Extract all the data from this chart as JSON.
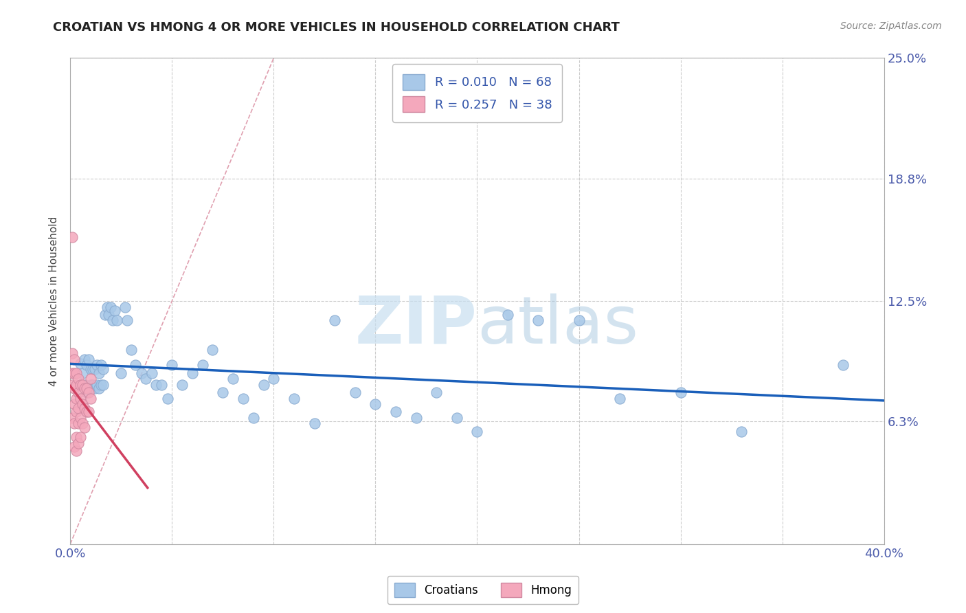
{
  "title": "CROATIAN VS HMONG 4 OR MORE VEHICLES IN HOUSEHOLD CORRELATION CHART",
  "source": "Source: ZipAtlas.com",
  "ylabel": "4 or more Vehicles in Household",
  "xlim": [
    0.0,
    0.4
  ],
  "ylim": [
    0.0,
    0.25
  ],
  "xtick_positions": [
    0.0,
    0.05,
    0.1,
    0.15,
    0.2,
    0.25,
    0.3,
    0.35,
    0.4
  ],
  "xticklabels": [
    "0.0%",
    "",
    "",
    "",
    "",
    "",
    "",
    "",
    "40.0%"
  ],
  "ytick_positions": [
    0.0,
    0.063,
    0.125,
    0.188,
    0.25
  ],
  "yticklabels_right": [
    "",
    "6.3%",
    "12.5%",
    "18.8%",
    "25.0%"
  ],
  "croatian_color": "#a8c8e8",
  "hmong_color": "#f4a8bc",
  "trend_croatian_color": "#1a5fba",
  "trend_hmong_color": "#d04060",
  "watermark_color": "#ddeef8",
  "background_color": "#ffffff",
  "croatian_x": [
    0.005,
    0.006,
    0.007,
    0.007,
    0.008,
    0.008,
    0.009,
    0.009,
    0.01,
    0.01,
    0.011,
    0.011,
    0.012,
    0.012,
    0.013,
    0.013,
    0.014,
    0.014,
    0.015,
    0.015,
    0.016,
    0.016,
    0.017,
    0.018,
    0.019,
    0.02,
    0.021,
    0.022,
    0.023,
    0.025,
    0.027,
    0.028,
    0.03,
    0.032,
    0.035,
    0.037,
    0.04,
    0.042,
    0.045,
    0.048,
    0.05,
    0.055,
    0.06,
    0.065,
    0.07,
    0.075,
    0.08,
    0.085,
    0.09,
    0.095,
    0.1,
    0.11,
    0.12,
    0.13,
    0.14,
    0.15,
    0.16,
    0.17,
    0.18,
    0.19,
    0.2,
    0.215,
    0.23,
    0.25,
    0.27,
    0.3,
    0.33,
    0.38
  ],
  "croatian_y": [
    0.093,
    0.088,
    0.095,
    0.082,
    0.092,
    0.078,
    0.095,
    0.08,
    0.09,
    0.082,
    0.09,
    0.082,
    0.09,
    0.08,
    0.092,
    0.082,
    0.088,
    0.08,
    0.092,
    0.082,
    0.09,
    0.082,
    0.118,
    0.122,
    0.118,
    0.122,
    0.115,
    0.12,
    0.115,
    0.088,
    0.122,
    0.115,
    0.1,
    0.092,
    0.088,
    0.085,
    0.088,
    0.082,
    0.082,
    0.075,
    0.092,
    0.082,
    0.088,
    0.092,
    0.1,
    0.078,
    0.085,
    0.075,
    0.065,
    0.082,
    0.085,
    0.075,
    0.062,
    0.115,
    0.078,
    0.072,
    0.068,
    0.065,
    0.078,
    0.065,
    0.058,
    0.118,
    0.115,
    0.115,
    0.075,
    0.078,
    0.058,
    0.092
  ],
  "hmong_x": [
    0.001,
    0.001,
    0.001,
    0.001,
    0.001,
    0.002,
    0.002,
    0.002,
    0.002,
    0.002,
    0.002,
    0.003,
    0.003,
    0.003,
    0.003,
    0.003,
    0.003,
    0.004,
    0.004,
    0.004,
    0.004,
    0.004,
    0.005,
    0.005,
    0.005,
    0.005,
    0.006,
    0.006,
    0.006,
    0.007,
    0.007,
    0.007,
    0.008,
    0.008,
    0.009,
    0.009,
    0.01,
    0.01
  ],
  "hmong_y": [
    0.158,
    0.098,
    0.088,
    0.082,
    0.065,
    0.095,
    0.088,
    0.08,
    0.072,
    0.062,
    0.05,
    0.088,
    0.082,
    0.075,
    0.068,
    0.055,
    0.048,
    0.085,
    0.078,
    0.07,
    0.062,
    0.052,
    0.082,
    0.075,
    0.065,
    0.055,
    0.082,
    0.072,
    0.062,
    0.08,
    0.07,
    0.06,
    0.08,
    0.068,
    0.078,
    0.068,
    0.085,
    0.075
  ],
  "hmong_trend_x_start": 0.0,
  "hmong_trend_x_end": 0.038,
  "croatian_trend_x_start": 0.0,
  "croatian_trend_x_end": 0.4,
  "ref_line_x": [
    0.0,
    0.12
  ],
  "ref_line_y": [
    0.0,
    0.25
  ]
}
